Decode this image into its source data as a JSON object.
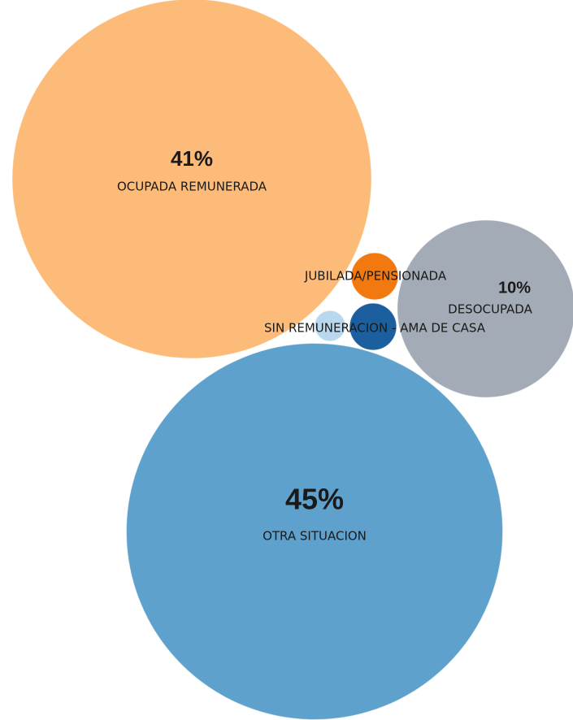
{
  "chart_data": {
    "type": "bubble",
    "categories": [
      "OCUPADA REMUNERADA",
      "OTRA SITUACION",
      "DESOCUPADA",
      "JUBILADA/PENSIONADA",
      "SIN REMUNERACION - AMA DE CASA",
      null
    ],
    "values": [
      41,
      45,
      10,
      0.7,
      0.7,
      0.3
    ],
    "value_labels": [
      "41%",
      "45%",
      "10%",
      null,
      null,
      null
    ],
    "colors": [
      "#fdbb7a",
      "#5ea1cc",
      "#a3abb7",
      "#f2790f",
      "#1b5f9e",
      "#b9d8ee"
    ]
  }
}
